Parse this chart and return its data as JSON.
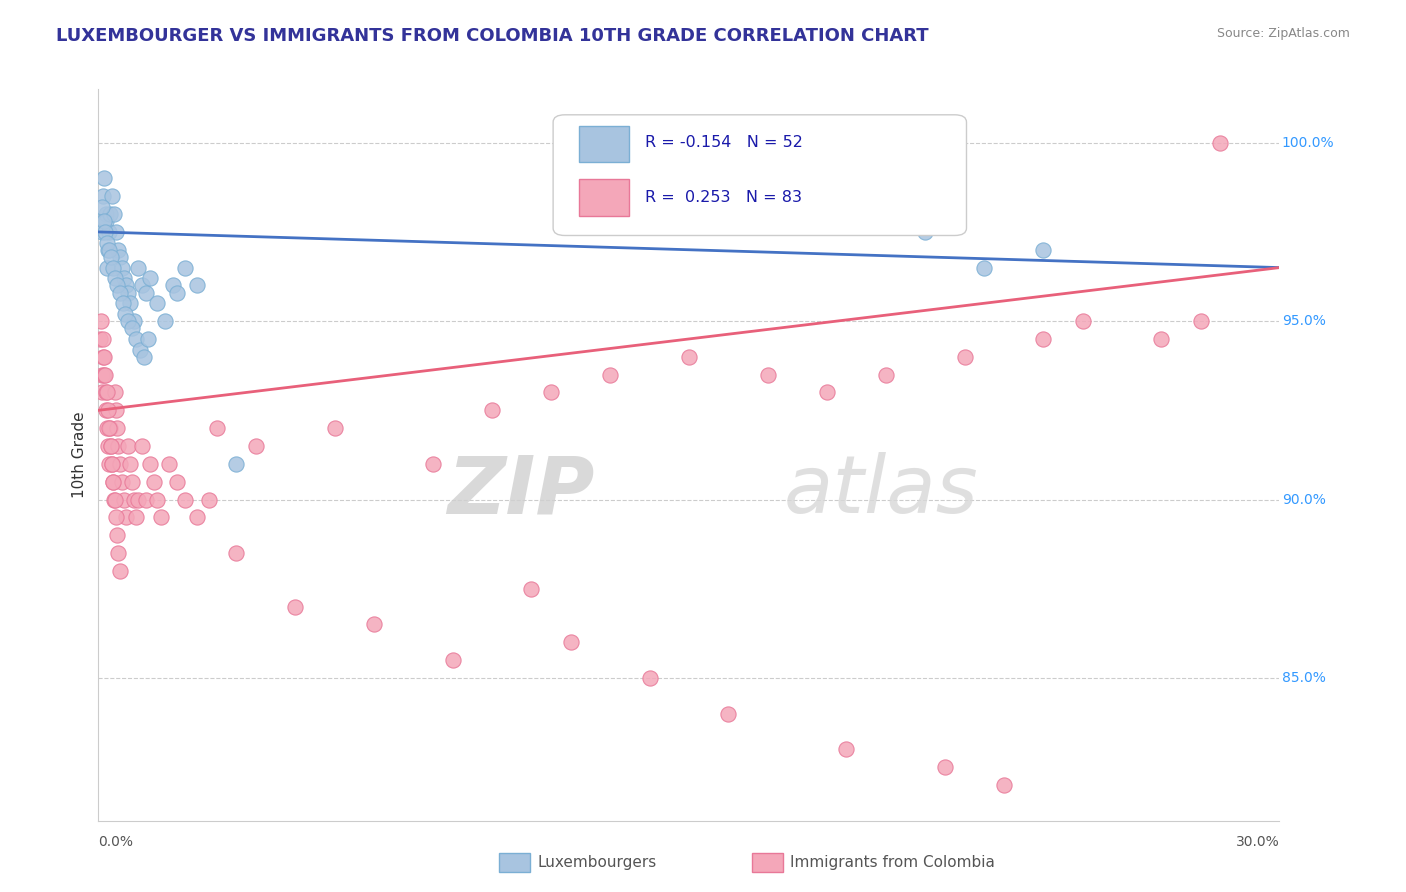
{
  "title": "LUXEMBOURGER VS IMMIGRANTS FROM COLOMBIA 10TH GRADE CORRELATION CHART",
  "source": "Source: ZipAtlas.com",
  "ylabel": "10th Grade",
  "xmin": 0.0,
  "xmax": 30.0,
  "ymin": 81.0,
  "ymax": 101.5,
  "right_yticks": [
    85.0,
    90.0,
    95.0,
    100.0
  ],
  "right_yticklabels": [
    "85.0%",
    "90.0%",
    "95.0%",
    "100.0%"
  ],
  "gridline_y": [
    85.0,
    90.0,
    95.0,
    100.0
  ],
  "blue_color": "#a8c4e0",
  "pink_color": "#f4a7b9",
  "blue_edge": "#7bafd4",
  "pink_edge": "#e87898",
  "trend_blue": "#4472c4",
  "trend_pink": "#e8607a",
  "legend_r_blue": "-0.154",
  "legend_n_blue": "52",
  "legend_r_pink": "0.253",
  "legend_n_pink": "83",
  "legend_label_blue": "Luxembourgers",
  "legend_label_pink": "Immigrants from Colombia",
  "watermark_zip": "ZIP",
  "watermark_atlas": "atlas",
  "blue_trend_y0": 97.5,
  "blue_trend_y1": 96.5,
  "pink_trend_y0": 92.5,
  "pink_trend_y1": 96.5,
  "blue_scatter_x": [
    0.08,
    0.12,
    0.15,
    0.18,
    0.2,
    0.22,
    0.25,
    0.28,
    0.3,
    0.35,
    0.4,
    0.45,
    0.5,
    0.55,
    0.6,
    0.65,
    0.7,
    0.75,
    0.8,
    0.9,
    1.0,
    1.1,
    1.2,
    1.3,
    1.5,
    1.7,
    1.9,
    2.0,
    2.2,
    2.5,
    0.1,
    0.13,
    0.17,
    0.22,
    0.27,
    0.32,
    0.38,
    0.42,
    0.48,
    0.55,
    0.62,
    0.68,
    0.75,
    0.85,
    0.95,
    1.05,
    1.15,
    1.25,
    3.5,
    21.0,
    22.5,
    24.0
  ],
  "blue_scatter_y": [
    97.5,
    98.5,
    99.0,
    98.0,
    97.8,
    96.5,
    97.0,
    97.5,
    98.0,
    98.5,
    98.0,
    97.5,
    97.0,
    96.8,
    96.5,
    96.2,
    96.0,
    95.8,
    95.5,
    95.0,
    96.5,
    96.0,
    95.8,
    96.2,
    95.5,
    95.0,
    96.0,
    95.8,
    96.5,
    96.0,
    98.2,
    97.8,
    97.5,
    97.2,
    97.0,
    96.8,
    96.5,
    96.2,
    96.0,
    95.8,
    95.5,
    95.2,
    95.0,
    94.8,
    94.5,
    94.2,
    94.0,
    94.5,
    91.0,
    97.5,
    96.5,
    97.0
  ],
  "pink_scatter_x": [
    0.05,
    0.08,
    0.1,
    0.12,
    0.15,
    0.18,
    0.2,
    0.22,
    0.25,
    0.28,
    0.3,
    0.32,
    0.35,
    0.38,
    0.4,
    0.42,
    0.45,
    0.48,
    0.5,
    0.55,
    0.6,
    0.65,
    0.7,
    0.75,
    0.8,
    0.85,
    0.9,
    0.95,
    1.0,
    1.1,
    1.2,
    1.3,
    1.4,
    1.5,
    1.6,
    1.8,
    2.0,
    2.2,
    2.5,
    2.8,
    0.07,
    0.11,
    0.14,
    0.17,
    0.21,
    0.24,
    0.27,
    0.31,
    0.34,
    0.37,
    0.41,
    0.44,
    0.47,
    0.51,
    0.54,
    3.0,
    4.0,
    6.0,
    8.5,
    10.0,
    11.5,
    13.0,
    15.0,
    17.0,
    18.5,
    20.0,
    22.0,
    24.0,
    25.0,
    27.0,
    28.0,
    28.5,
    3.5,
    5.0,
    7.0,
    9.0,
    11.0,
    12.0,
    14.0,
    16.0,
    19.0,
    21.5,
    23.0
  ],
  "pink_scatter_y": [
    94.5,
    93.5,
    93.0,
    94.0,
    93.5,
    93.0,
    92.5,
    92.0,
    91.5,
    91.0,
    92.0,
    91.5,
    91.0,
    90.5,
    90.0,
    93.0,
    92.5,
    92.0,
    91.5,
    91.0,
    90.5,
    90.0,
    89.5,
    91.5,
    91.0,
    90.5,
    90.0,
    89.5,
    90.0,
    91.5,
    90.0,
    91.0,
    90.5,
    90.0,
    89.5,
    91.0,
    90.5,
    90.0,
    89.5,
    90.0,
    95.0,
    94.5,
    94.0,
    93.5,
    93.0,
    92.5,
    92.0,
    91.5,
    91.0,
    90.5,
    90.0,
    89.5,
    89.0,
    88.5,
    88.0,
    92.0,
    91.5,
    92.0,
    91.0,
    92.5,
    93.0,
    93.5,
    94.0,
    93.5,
    93.0,
    93.5,
    94.0,
    94.5,
    95.0,
    94.5,
    95.0,
    100.0,
    88.5,
    87.0,
    86.5,
    85.5,
    87.5,
    86.0,
    85.0,
    84.0,
    83.0,
    82.5,
    82.0
  ]
}
